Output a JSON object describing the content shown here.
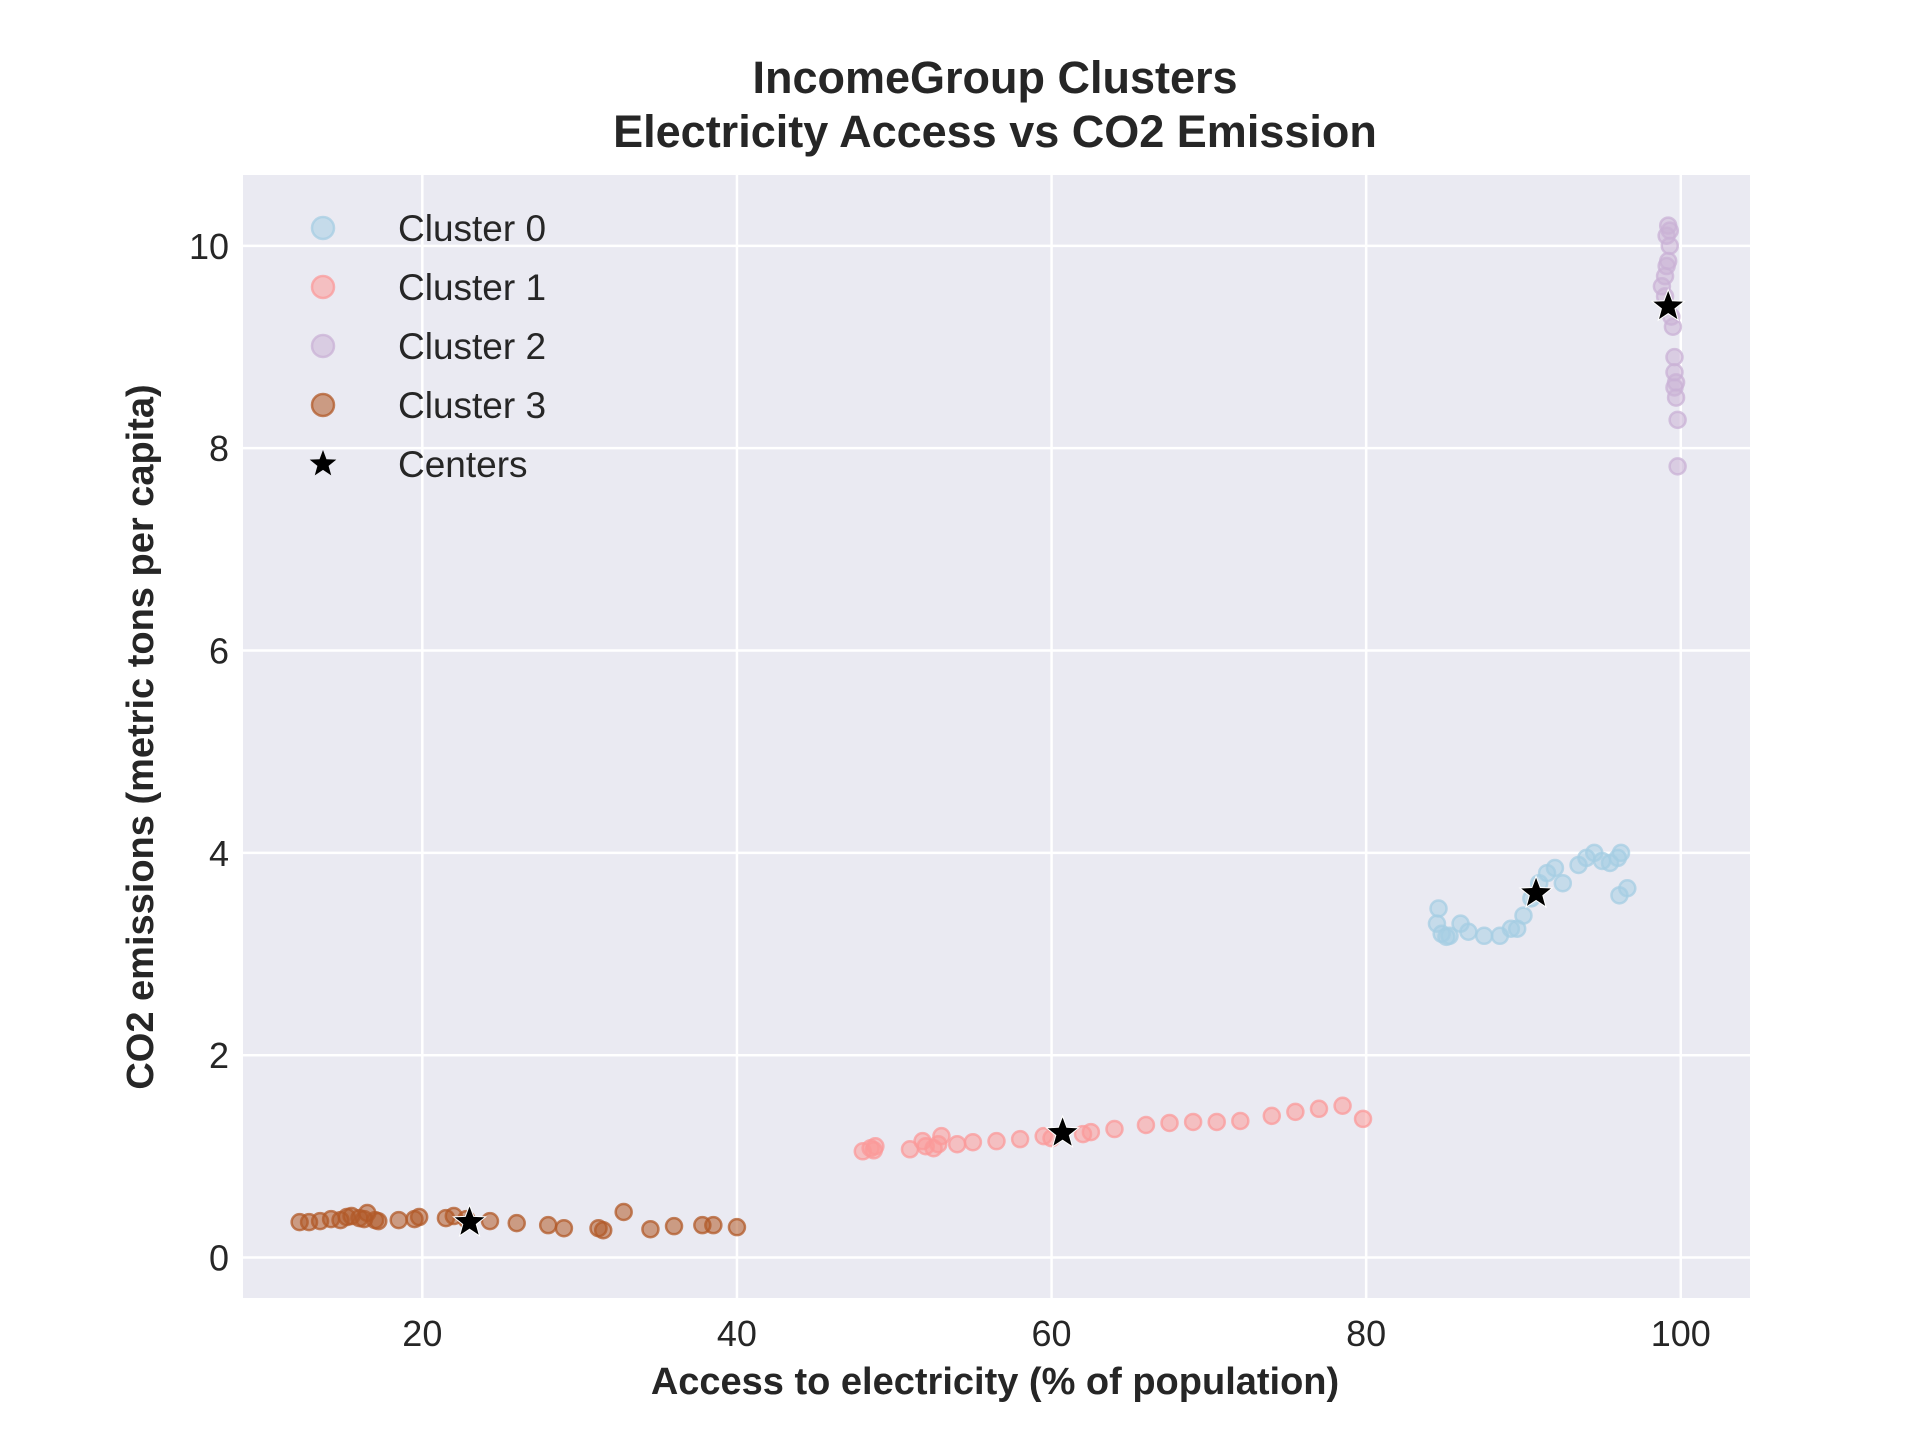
{
  "chart_data": {
    "type": "scatter",
    "title": "IncomeGroup Clusters",
    "subtitle": "Electricity Access vs CO2 Emission",
    "xlabel": "Access to electricity (% of population)",
    "ylabel": "CO2 emissions (metric tons per capita)",
    "xlim": [
      8.6,
      104.4
    ],
    "ylim": [
      -0.4,
      10.7
    ],
    "xticks": [
      20,
      40,
      60,
      80,
      100
    ],
    "yticks": [
      0,
      2,
      4,
      6,
      8,
      10
    ],
    "grid": true,
    "legend_position": "top-left",
    "series": [
      {
        "name": "Cluster 0",
        "color": "#a6cee3",
        "points": [
          [
            84.5,
            3.3
          ],
          [
            84.6,
            3.45
          ],
          [
            84.8,
            3.2
          ],
          [
            85.1,
            3.17
          ],
          [
            85.3,
            3.18
          ],
          [
            86.0,
            3.3
          ],
          [
            86.5,
            3.22
          ],
          [
            87.5,
            3.18
          ],
          [
            88.5,
            3.18
          ],
          [
            89.2,
            3.25
          ],
          [
            89.6,
            3.25
          ],
          [
            90.0,
            3.38
          ],
          [
            90.5,
            3.55
          ],
          [
            91.0,
            3.7
          ],
          [
            91.5,
            3.8
          ],
          [
            92.0,
            3.85
          ],
          [
            92.5,
            3.7
          ],
          [
            93.5,
            3.88
          ],
          [
            94.0,
            3.95
          ],
          [
            94.5,
            4.0
          ],
          [
            95.0,
            3.92
          ],
          [
            95.5,
            3.9
          ],
          [
            96.0,
            3.95
          ],
          [
            96.2,
            4.0
          ],
          [
            96.1,
            3.58
          ],
          [
            96.6,
            3.65
          ]
        ]
      },
      {
        "name": "Cluster 1",
        "color": "#fb9a99",
        "points": [
          [
            48.0,
            1.05
          ],
          [
            48.5,
            1.08
          ],
          [
            48.8,
            1.1
          ],
          [
            48.7,
            1.06
          ],
          [
            51.0,
            1.07
          ],
          [
            51.8,
            1.15
          ],
          [
            52.0,
            1.1
          ],
          [
            52.5,
            1.08
          ],
          [
            52.8,
            1.12
          ],
          [
            53.0,
            1.2
          ],
          [
            54.0,
            1.12
          ],
          [
            55.0,
            1.14
          ],
          [
            56.5,
            1.15
          ],
          [
            58.0,
            1.17
          ],
          [
            59.5,
            1.2
          ],
          [
            60.0,
            1.18
          ],
          [
            62.0,
            1.22
          ],
          [
            62.5,
            1.24
          ],
          [
            64.0,
            1.27
          ],
          [
            66.0,
            1.31
          ],
          [
            67.5,
            1.33
          ],
          [
            69.0,
            1.34
          ],
          [
            70.5,
            1.34
          ],
          [
            72.0,
            1.35
          ],
          [
            74.0,
            1.4
          ],
          [
            75.5,
            1.44
          ],
          [
            77.0,
            1.47
          ],
          [
            78.5,
            1.5
          ],
          [
            79.8,
            1.37
          ]
        ]
      },
      {
        "name": "Cluster 2",
        "color": "#cab2d6",
        "points": [
          [
            98.8,
            9.6
          ],
          [
            99.0,
            9.7
          ],
          [
            99.1,
            9.8
          ],
          [
            99.2,
            9.85
          ],
          [
            99.3,
            10.0
          ],
          [
            99.1,
            10.1
          ],
          [
            99.2,
            10.2
          ],
          [
            99.3,
            10.15
          ],
          [
            99.0,
            9.5
          ],
          [
            99.4,
            9.3
          ],
          [
            99.5,
            9.2
          ],
          [
            99.6,
            8.9
          ],
          [
            99.6,
            8.75
          ],
          [
            99.7,
            8.65
          ],
          [
            99.6,
            8.6
          ],
          [
            99.7,
            8.5
          ],
          [
            99.8,
            8.28
          ],
          [
            99.8,
            7.82
          ]
        ]
      },
      {
        "name": "Cluster 3",
        "color": "#b15928",
        "points": [
          [
            12.2,
            0.35
          ],
          [
            12.8,
            0.35
          ],
          [
            13.5,
            0.36
          ],
          [
            14.2,
            0.38
          ],
          [
            14.8,
            0.37
          ],
          [
            15.2,
            0.4
          ],
          [
            15.5,
            0.41
          ],
          [
            16.0,
            0.39
          ],
          [
            16.3,
            0.38
          ],
          [
            16.5,
            0.44
          ],
          [
            17.0,
            0.37
          ],
          [
            17.2,
            0.36
          ],
          [
            18.5,
            0.37
          ],
          [
            19.5,
            0.38
          ],
          [
            19.8,
            0.4
          ],
          [
            21.5,
            0.39
          ],
          [
            22.0,
            0.41
          ],
          [
            22.8,
            0.38
          ],
          [
            24.3,
            0.36
          ],
          [
            26.0,
            0.34
          ],
          [
            28.0,
            0.32
          ],
          [
            29.0,
            0.29
          ],
          [
            31.2,
            0.29
          ],
          [
            31.5,
            0.27
          ],
          [
            32.8,
            0.45
          ],
          [
            34.5,
            0.28
          ],
          [
            36.0,
            0.31
          ],
          [
            37.8,
            0.32
          ],
          [
            38.5,
            0.32
          ],
          [
            40.0,
            0.3
          ]
        ]
      }
    ],
    "centers": {
      "name": "Centers",
      "color": "#000000",
      "points": [
        [
          23.0,
          0.35
        ],
        [
          60.7,
          1.23
        ],
        [
          90.8,
          3.6
        ],
        [
          99.2,
          9.4
        ]
      ]
    }
  }
}
